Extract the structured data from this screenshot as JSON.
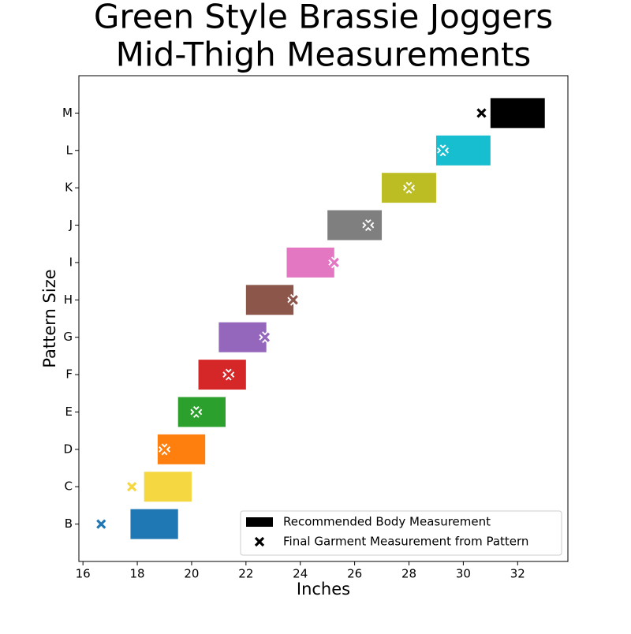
{
  "chart_data": {
    "type": "floating-bar",
    "title": [
      "Green Style Brassie Joggers",
      "Mid-Thigh Measurements"
    ],
    "xlabel": "Inches",
    "ylabel": "Pattern Size",
    "categories": [
      "B",
      "C",
      "D",
      "E",
      "F",
      "G",
      "H",
      "I",
      "J",
      "K",
      "L",
      "M"
    ],
    "colors": [
      "#1f77b4",
      "#f5d742",
      "#ff7f0e",
      "#2ca02c",
      "#d62728",
      "#9467bd",
      "#8c564b",
      "#e377c2",
      "#7f7f7f",
      "#bcbd22",
      "#17becf",
      "#000000"
    ],
    "series": [
      {
        "name": "Recommended Body Measurement",
        "color": "#000000",
        "low": [
          17.75,
          18.25,
          18.75,
          19.5,
          20.25,
          21,
          22,
          23.5,
          25,
          27,
          29,
          31
        ],
        "high": [
          19.5,
          20,
          20.5,
          21.25,
          22,
          22.75,
          23.75,
          25.25,
          27,
          29,
          31,
          33
        ]
      },
      {
        "name": "Final Garment Measurement from Pattern",
        "color": "#000000",
        "values": [
          16.67,
          17.8,
          19,
          20.17,
          21.36,
          22.7,
          23.74,
          25.25,
          26.5,
          28,
          29.25,
          30.67
        ]
      }
    ],
    "xlim": [
      15.85,
      33.85
    ],
    "xticks": [
      16,
      18,
      20,
      22,
      24,
      26,
      28,
      30,
      32
    ],
    "legend": "lower right"
  }
}
